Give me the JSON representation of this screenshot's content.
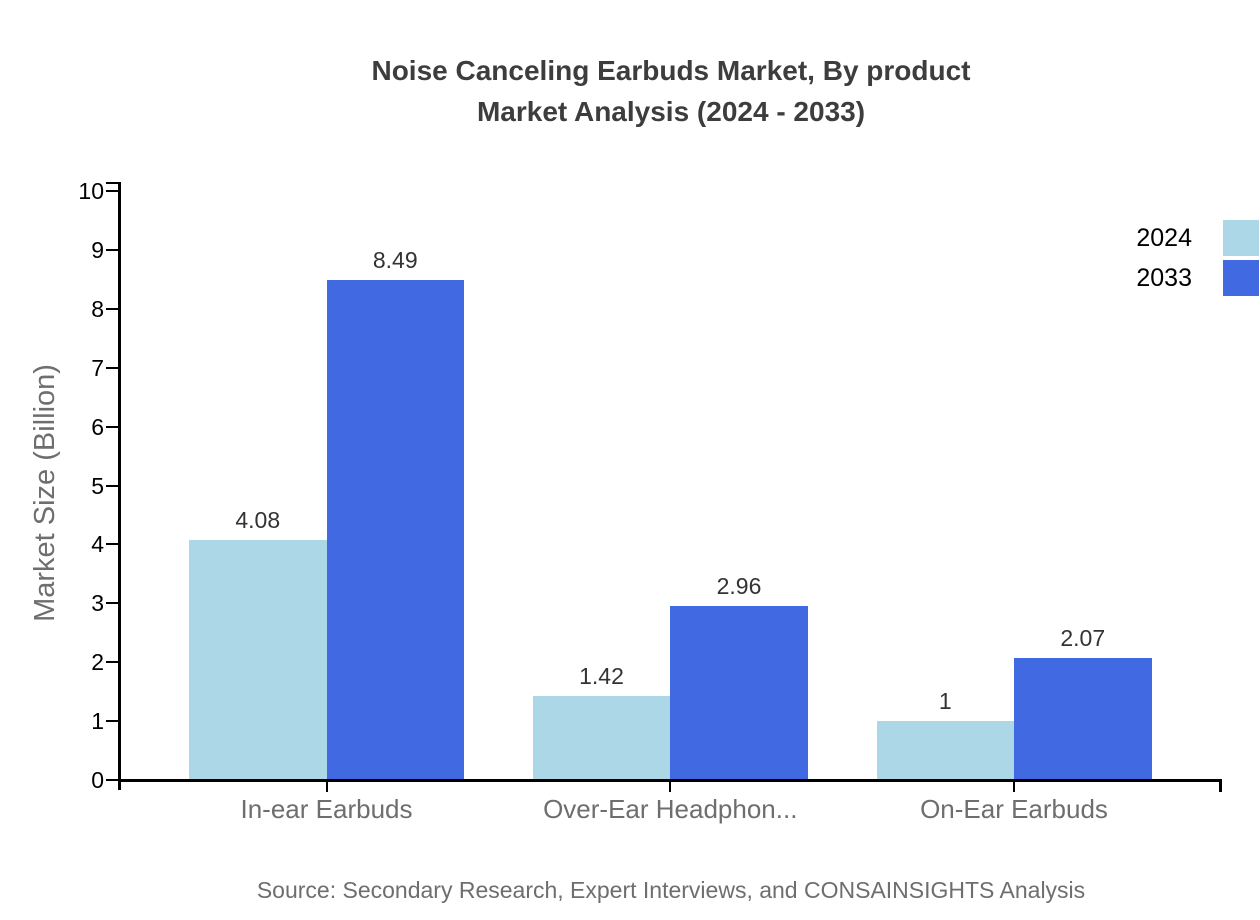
{
  "header": {
    "title_line1": "Noise Canceling Earbuds Market, By product",
    "title_line2": "Market Analysis (2024 - 2033)"
  },
  "footer": {
    "source": "Source: Secondary Research, Expert Interviews, and CONSAINSIGHTS Analysis"
  },
  "chart_data": {
    "type": "bar",
    "title": "Noise Canceling Earbuds Market, By product Market Analysis (2024 - 2033)",
    "xlabel": "",
    "ylabel": "Market Size (Billion)",
    "categories": [
      "In-ear Earbuds",
      "Over-Ear Headphon...",
      "On-Ear Earbuds"
    ],
    "series": [
      {
        "name": "2024",
        "color": "#abd7e6",
        "values": [
          4.08,
          1.42,
          1.0
        ],
        "labels": [
          "4.08",
          "1.42",
          "1"
        ]
      },
      {
        "name": "2033",
        "color": "#4169e1",
        "values": [
          8.49,
          2.96,
          2.07
        ],
        "labels": [
          "8.49",
          "2.96",
          "2.07"
        ]
      }
    ],
    "ylim": [
      0,
      10
    ],
    "yticks": [
      0,
      1,
      2,
      3,
      4,
      5,
      6,
      7,
      8,
      9,
      10
    ],
    "grid": false,
    "legend_position": "top-right",
    "axis_color": "#000000",
    "title_color": "#3d3d3d",
    "label_color": "#6e6e6e",
    "value_label_color": "#333333"
  }
}
